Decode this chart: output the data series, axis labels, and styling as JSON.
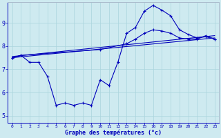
{
  "xlabel": "Graphe des températures (°c)",
  "background_color": "#ceeaf0",
  "line_color": "#0000bb",
  "grid_color": "#aad4dd",
  "xlim": [
    -0.5,
    23.5
  ],
  "ylim": [
    4.7,
    9.9
  ],
  "yticks": [
    5,
    6,
    7,
    8,
    9
  ],
  "xticks": [
    0,
    1,
    2,
    3,
    4,
    5,
    6,
    7,
    8,
    9,
    10,
    11,
    12,
    13,
    14,
    15,
    16,
    17,
    18,
    19,
    20,
    21,
    22,
    23
  ],
  "series": [
    {
      "x": [
        0,
        1,
        2,
        3,
        4,
        5,
        6,
        7,
        8,
        9,
        10,
        11,
        12,
        13,
        14,
        15,
        16,
        17,
        18,
        19,
        20,
        21,
        22,
        23
      ],
      "y": [
        7.5,
        7.6,
        7.3,
        7.3,
        6.7,
        5.45,
        5.55,
        5.45,
        5.55,
        5.45,
        6.55,
        6.3,
        7.3,
        8.55,
        8.8,
        9.5,
        9.75,
        9.55,
        9.3,
        8.7,
        8.5,
        8.35,
        8.4,
        8.3
      ]
    },
    {
      "x": [
        0,
        23
      ],
      "y": [
        7.5,
        8.35
      ]
    },
    {
      "x": [
        0,
        23
      ],
      "y": [
        7.55,
        8.45
      ]
    },
    {
      "x": [
        0,
        1,
        10,
        13,
        14,
        15,
        16,
        17,
        18,
        19,
        20,
        21,
        22,
        23
      ],
      "y": [
        7.5,
        7.6,
        7.85,
        8.1,
        8.3,
        8.55,
        8.7,
        8.65,
        8.55,
        8.35,
        8.3,
        8.3,
        8.45,
        8.3
      ]
    }
  ]
}
